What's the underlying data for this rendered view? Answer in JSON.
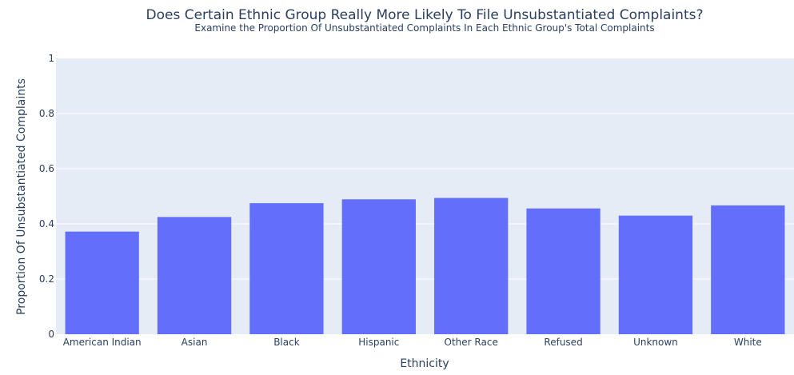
{
  "chart_data": {
    "type": "bar",
    "title": "Does Certain Ethnic Group Really More Likely To File Unsubstantiated Complaints?",
    "subtitle": "Examine the Proportion Of Unsubstantiated Complaints In Each Ethnic Group's Total Complaints",
    "xlabel": "Ethnicity",
    "ylabel": "Proportion Of Unsubstantiated Complaints",
    "categories": [
      "American Indian",
      "Asian",
      "Black",
      "Hispanic",
      "Other Race",
      "Refused",
      "Unknown",
      "White"
    ],
    "values": [
      0.372,
      0.425,
      0.475,
      0.489,
      0.494,
      0.456,
      0.43,
      0.467
    ],
    "ylim": [
      0,
      1
    ],
    "yticks": [
      0,
      0.2,
      0.4,
      0.6,
      0.8,
      1
    ],
    "ytick_labels": [
      "0",
      "0.2",
      "0.4",
      "0.6",
      "0.8",
      "1"
    ],
    "grid": true,
    "colors": {
      "bar": "#636efa",
      "plot_bg": "#e5ecf6",
      "grid": "#ffffff",
      "text": "#2a3f5f"
    }
  }
}
